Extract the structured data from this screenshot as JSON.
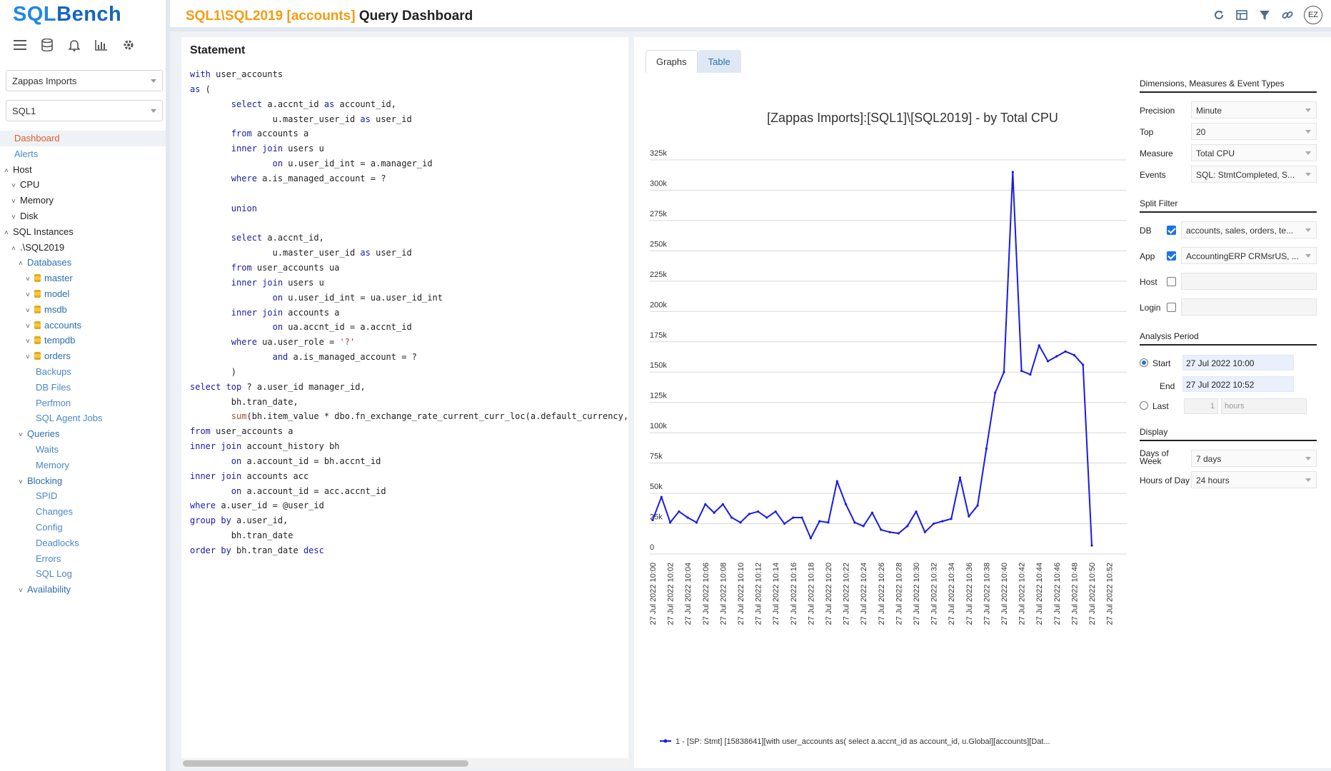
{
  "app": {
    "logo_part1": "SQL",
    "logo_part2": "Bench",
    "header": {
      "title_path": "SQL1\\SQL2019 [accounts]",
      "title_suffix": " Query Dashboard",
      "avatar": "EZ",
      "icons": [
        "refresh-icon",
        "grid-icon",
        "filter-icon",
        "link-icon"
      ]
    }
  },
  "sidebar": {
    "toolbar_icons": [
      "hamburger-icon",
      "database-icon",
      "bell-icon",
      "chart-icon",
      "gear-icon"
    ],
    "customer_select": "Zappas Imports",
    "server_select": "SQL1",
    "nav": [
      {
        "label": "Dashboard",
        "indent": 0,
        "chev": "",
        "color": "#e05a2b",
        "active": true
      },
      {
        "label": "Alerts",
        "indent": 0,
        "chev": "",
        "color": "#4a88c7"
      },
      {
        "label": "Host",
        "indent": 0,
        "chev": "^",
        "color": "#222"
      },
      {
        "label": "CPU",
        "indent": 1,
        "chev": "v",
        "color": "#222"
      },
      {
        "label": "Memory",
        "indent": 1,
        "chev": "v",
        "color": "#222"
      },
      {
        "label": "Disk",
        "indent": 1,
        "chev": "v",
        "color": "#222"
      },
      {
        "label": "SQL Instances",
        "indent": 0,
        "chev": "^",
        "color": "#222"
      },
      {
        "label": ".\\SQL2019",
        "indent": 1,
        "chev": "^",
        "color": "#222"
      },
      {
        "label": "Databases",
        "indent": 2,
        "chev": "^",
        "color": "#2a6fb0"
      },
      {
        "label": "master",
        "indent": 3,
        "chev": "v",
        "color": "#2a6fb0",
        "db": true
      },
      {
        "label": "model",
        "indent": 3,
        "chev": "v",
        "color": "#2a6fb0",
        "db": true
      },
      {
        "label": "msdb",
        "indent": 3,
        "chev": "v",
        "color": "#2a6fb0",
        "db": true
      },
      {
        "label": "accounts",
        "indent": 3,
        "chev": "v",
        "color": "#2a6fb0",
        "db": true
      },
      {
        "label": "tempdb",
        "indent": 3,
        "chev": "v",
        "color": "#2a6fb0",
        "db": true
      },
      {
        "label": "orders",
        "indent": 3,
        "chev": "v",
        "color": "#2a6fb0",
        "db": true
      },
      {
        "label": "Backups",
        "indent": 3,
        "chev": "",
        "color": "#4a88c7"
      },
      {
        "label": "DB Files",
        "indent": 3,
        "chev": "",
        "color": "#4a88c7"
      },
      {
        "label": "Perfmon",
        "indent": 3,
        "chev": "",
        "color": "#4a88c7"
      },
      {
        "label": "SQL Agent Jobs",
        "indent": 3,
        "chev": "",
        "color": "#4a88c7"
      },
      {
        "label": "Queries",
        "indent": 2,
        "chev": "v",
        "color": "#2a6fb0"
      },
      {
        "label": "Waits",
        "indent": 3,
        "chev": "",
        "color": "#4a88c7"
      },
      {
        "label": "Memory",
        "indent": 3,
        "chev": "",
        "color": "#4a88c7"
      },
      {
        "label": "Blocking",
        "indent": 2,
        "chev": "v",
        "color": "#2a6fb0"
      },
      {
        "label": "SPID",
        "indent": 3,
        "chev": "",
        "color": "#4a88c7"
      },
      {
        "label": "Changes",
        "indent": 3,
        "chev": "",
        "color": "#4a88c7"
      },
      {
        "label": "Config",
        "indent": 3,
        "chev": "",
        "color": "#4a88c7"
      },
      {
        "label": "Deadlocks",
        "indent": 3,
        "chev": "",
        "color": "#4a88c7"
      },
      {
        "label": "Errors",
        "indent": 3,
        "chev": "",
        "color": "#4a88c7"
      },
      {
        "label": "SQL Log",
        "indent": 3,
        "chev": "",
        "color": "#4a88c7"
      },
      {
        "label": "Availability",
        "indent": 2,
        "chev": "v",
        "color": "#2a6fb0"
      }
    ]
  },
  "statement": {
    "title": "Statement",
    "lines": [
      [
        [
          "kw",
          "with"
        ],
        [
          "t",
          " user_accounts"
        ]
      ],
      [
        [
          "kw",
          "as"
        ],
        [
          "t",
          " ("
        ]
      ],
      [
        [
          "t",
          "        "
        ],
        [
          "kw",
          "select"
        ],
        [
          "t",
          " a.accnt_id "
        ],
        [
          "kw",
          "as"
        ],
        [
          "t",
          " account_id,"
        ]
      ],
      [
        [
          "t",
          "                u.master_user_id "
        ],
        [
          "kw",
          "as"
        ],
        [
          "t",
          " user_id"
        ]
      ],
      [
        [
          "t",
          "        "
        ],
        [
          "kw",
          "from"
        ],
        [
          "t",
          " accounts a"
        ]
      ],
      [
        [
          "t",
          "        "
        ],
        [
          "kw",
          "inner join"
        ],
        [
          "t",
          " users u"
        ]
      ],
      [
        [
          "t",
          "                "
        ],
        [
          "kw",
          "on"
        ],
        [
          "t",
          " u.user_id_int = a.manager_id"
        ]
      ],
      [
        [
          "t",
          "        "
        ],
        [
          "kw",
          "where"
        ],
        [
          "t",
          " a.is_managed_account = ?"
        ]
      ],
      [
        [
          "t",
          ""
        ]
      ],
      [
        [
          "t",
          "        "
        ],
        [
          "kw",
          "union"
        ]
      ],
      [
        [
          "t",
          ""
        ]
      ],
      [
        [
          "t",
          "        "
        ],
        [
          "kw",
          "select"
        ],
        [
          "t",
          " a.accnt_id,"
        ]
      ],
      [
        [
          "t",
          "                u.master_user_id "
        ],
        [
          "kw",
          "as"
        ],
        [
          "t",
          " user_id"
        ]
      ],
      [
        [
          "t",
          "        "
        ],
        [
          "kw",
          "from"
        ],
        [
          "t",
          " user_accounts ua"
        ]
      ],
      [
        [
          "t",
          "        "
        ],
        [
          "kw",
          "inner join"
        ],
        [
          "t",
          " users u"
        ]
      ],
      [
        [
          "t",
          "                "
        ],
        [
          "kw",
          "on"
        ],
        [
          "t",
          " u.user_id_int = ua.user_id_int"
        ]
      ],
      [
        [
          "t",
          "        "
        ],
        [
          "kw",
          "inner join"
        ],
        [
          "t",
          " accounts a"
        ]
      ],
      [
        [
          "t",
          "                "
        ],
        [
          "kw",
          "on"
        ],
        [
          "t",
          " ua.accnt_id = a.accnt_id"
        ]
      ],
      [
        [
          "t",
          "        "
        ],
        [
          "kw",
          "where"
        ],
        [
          "t",
          " ua.user_role = "
        ],
        [
          "str",
          "'?'"
        ]
      ],
      [
        [
          "t",
          "                "
        ],
        [
          "kw",
          "and"
        ],
        [
          "t",
          " a.is_managed_account = ?"
        ]
      ],
      [
        [
          "t",
          "        )"
        ]
      ],
      [
        [
          "kw",
          "select top"
        ],
        [
          "t",
          " ? a.user_id manager_id,"
        ]
      ],
      [
        [
          "t",
          "        bh.tran_date,"
        ]
      ],
      [
        [
          "t",
          "        "
        ],
        [
          "fn",
          "sum"
        ],
        [
          "t",
          "(bh.item_value * dbo.fn_exchange_rate_current_curr_loc(a.default_currency,"
        ]
      ],
      [
        [
          "kw",
          "from"
        ],
        [
          "t",
          " user_accounts a"
        ]
      ],
      [
        [
          "kw",
          "inner join"
        ],
        [
          "t",
          " account_history bh"
        ]
      ],
      [
        [
          "t",
          "        "
        ],
        [
          "kw",
          "on"
        ],
        [
          "t",
          " a.account_id = bh.accnt_id"
        ]
      ],
      [
        [
          "kw",
          "inner join"
        ],
        [
          "t",
          " accounts acc"
        ]
      ],
      [
        [
          "t",
          "        "
        ],
        [
          "kw",
          "on"
        ],
        [
          "t",
          " a.account_id = acc.accnt_id"
        ]
      ],
      [
        [
          "kw",
          "where"
        ],
        [
          "t",
          " a.user_id = @user_id"
        ]
      ],
      [
        [
          "kw",
          "group by"
        ],
        [
          "t",
          " a.user_id,"
        ]
      ],
      [
        [
          "t",
          "        bh.tran_date"
        ]
      ],
      [
        [
          "kw",
          "order by"
        ],
        [
          "t",
          " bh.tran_date "
        ],
        [
          "kw",
          "desc"
        ]
      ]
    ]
  },
  "tabs": {
    "graphs": "Graphs",
    "table": "Table"
  },
  "settings": {
    "dims_title": "Dimensions, Measures & Event Types",
    "precision_label": "Precision",
    "precision_value": "Minute",
    "top_label": "Top",
    "top_value": "20",
    "measure_label": "Measure",
    "measure_value": "Total CPU",
    "events_label": "Events",
    "events_value": "SQL: StmtCompleted, S...",
    "split_title": "Split Filter",
    "db_label": "DB",
    "db_value": "accounts, sales, orders, te...",
    "app_label": "App",
    "app_value": "AccountingERP CRMsrUS, ...",
    "host_label": "Host",
    "login_label": "Login",
    "analysis_title": "Analysis Period",
    "start_label": "Start",
    "start_value": "27 Jul 2022 10:00",
    "end_label": "End",
    "end_value": "27 Jul 2022 10:52",
    "last_label": "Last",
    "last_value": "1",
    "last_unit_placeholder": "hours",
    "display_title": "Display",
    "dow_label": "Days of Week",
    "dow_value": "7 days",
    "hod_label": "Hours of Day",
    "hod_value": "24 hours"
  },
  "chart_data": {
    "type": "line",
    "title": "[Zappas Imports]:[SQL1]\\[SQL2019] - by Total CPU",
    "ylim": [
      0,
      325000
    ],
    "yticks": [
      0,
      25000,
      50000,
      75000,
      100000,
      125000,
      150000,
      175000,
      200000,
      225000,
      250000,
      275000,
      300000,
      325000
    ],
    "ytick_labels": [
      "0",
      "25k",
      "50k",
      "75k",
      "100k",
      "125k",
      "150k",
      "175k",
      "200k",
      "225k",
      "250k",
      "275k",
      "300k",
      "325k"
    ],
    "xtick_labels": [
      "27 Jul 2022 10:00",
      "27 Jul 2022 10:02",
      "27 Jul 2022 10:04",
      "27 Jul 2022 10:06",
      "27 Jul 2022 10:08",
      "27 Jul 2022 10:10",
      "27 Jul 2022 10:12",
      "27 Jul 2022 10:14",
      "27 Jul 2022 10:16",
      "27 Jul 2022 10:18",
      "27 Jul 2022 10:20",
      "27 Jul 2022 10:22",
      "27 Jul 2022 10:24",
      "27 Jul 2022 10:26",
      "27 Jul 2022 10:28",
      "27 Jul 2022 10:30",
      "27 Jul 2022 10:32",
      "27 Jul 2022 10:34",
      "27 Jul 2022 10:36",
      "27 Jul 2022 10:38",
      "27 Jul 2022 10:40",
      "27 Jul 2022 10:42",
      "27 Jul 2022 10:44",
      "27 Jul 2022 10:46",
      "27 Jul 2022 10:48",
      "27 Jul 2022 10:50",
      "27 Jul 2022 10:52"
    ],
    "grid": true,
    "legend_position": "bottom",
    "color": "#1a1ae6",
    "series": [
      {
        "name": "1 - [SP: Stmt] [15838641][with user_accounts as( select a.accnt_id as account_id, u.Global][accounts][Dat...",
        "x": [
          "10:00",
          "10:01",
          "10:02",
          "10:03",
          "10:04",
          "10:05",
          "10:06",
          "10:07",
          "10:08",
          "10:09",
          "10:10",
          "10:11",
          "10:12",
          "10:13",
          "10:14",
          "10:15",
          "10:16",
          "10:17",
          "10:18",
          "10:19",
          "10:20",
          "10:21",
          "10:22",
          "10:23",
          "10:24",
          "10:25",
          "10:26",
          "10:27",
          "10:28",
          "10:29",
          "10:30",
          "10:31",
          "10:32",
          "10:33",
          "10:34",
          "10:35",
          "10:36",
          "10:37",
          "10:38",
          "10:39",
          "10:40",
          "10:41",
          "10:42",
          "10:43",
          "10:44",
          "10:45",
          "10:46",
          "10:47",
          "10:48",
          "10:49",
          "10:50"
        ],
        "values": [
          28000,
          47000,
          26000,
          35000,
          30000,
          26000,
          41000,
          34000,
          41000,
          30000,
          26000,
          33000,
          35000,
          30000,
          35000,
          25000,
          30000,
          30000,
          13000,
          27000,
          26000,
          60000,
          41000,
          26000,
          23000,
          34000,
          20000,
          18000,
          17000,
          23000,
          35000,
          18000,
          25000,
          27000,
          29000,
          63000,
          31000,
          40000,
          87000,
          133000,
          150000,
          315000,
          151000,
          148000,
          172000,
          159000,
          163000,
          167000,
          164000,
          156000,
          7000
        ]
      }
    ]
  }
}
